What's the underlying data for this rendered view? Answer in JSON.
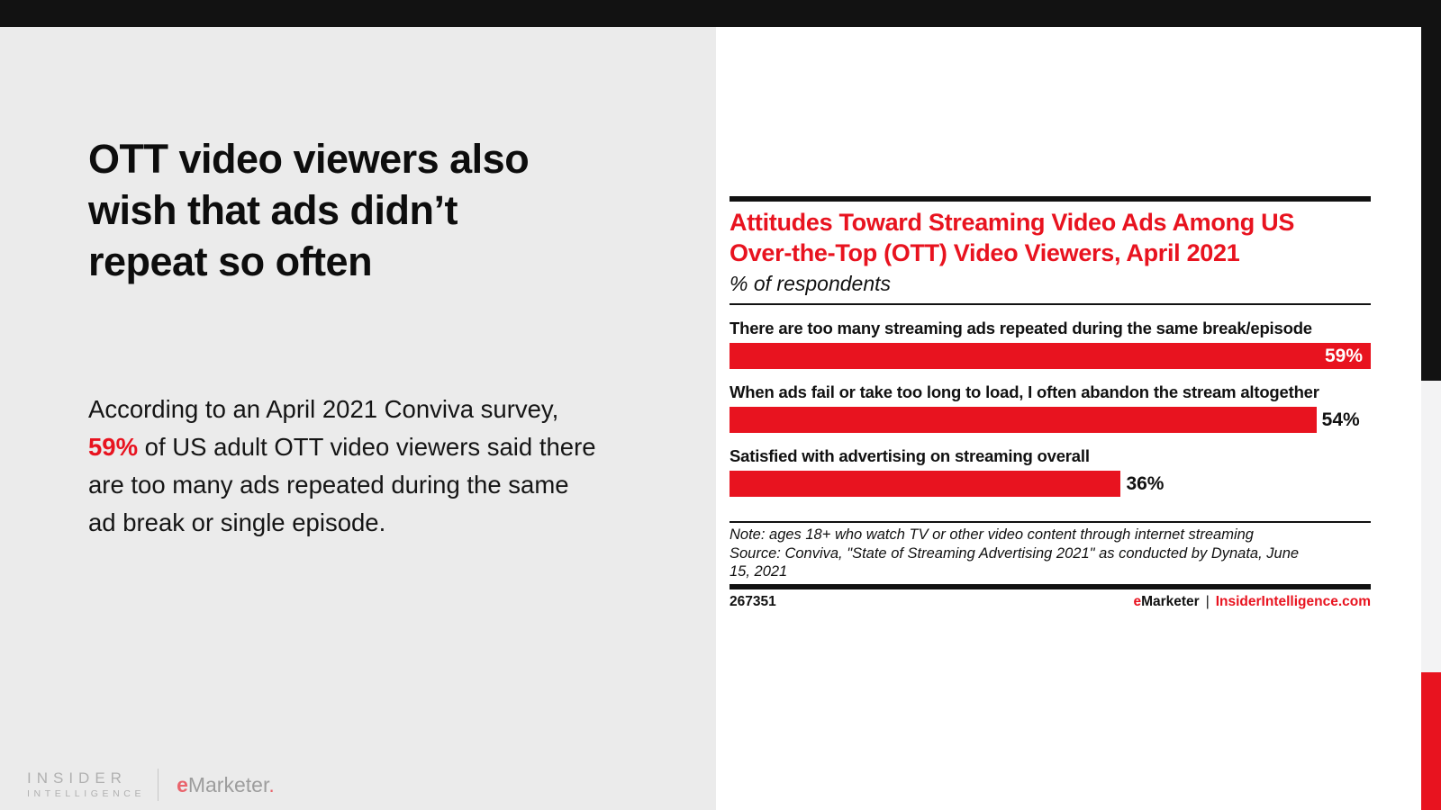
{
  "colors": {
    "accent_red": "#e8131f",
    "top_bar_black": "#121212",
    "left_panel_bg": "#ebebeb",
    "card_bg": "#ffffff",
    "edge_gray": "#f3f3f4"
  },
  "left_panel": {
    "headline_lines": [
      "OTT video viewers also",
      "wish that ads didn’t",
      "repeat so often"
    ],
    "paragraph": {
      "line1": "According to an April 2021 Conviva survey,",
      "line2_highlight": "59%",
      "line2_rest": " of US adult OTT video viewers said there",
      "line3": "are too many ads repeated during the same",
      "line4": "ad break or single episode."
    },
    "logo": {
      "insider": "INSIDER",
      "intelligence": "INTELLIGENCE",
      "emarketer_e": "e",
      "emarketer_rest": "Marketer",
      "emarketer_dot": "."
    }
  },
  "chart_data": {
    "type": "bar",
    "orientation": "horizontal",
    "title": "Attitudes Toward Streaming Video Ads Among US Over-the-Top (OTT) Video Viewers, April 2021",
    "title_lines": [
      "Attitudes Toward Streaming Video Ads Among US",
      "Over-the-Top (OTT) Video Viewers, April 2021"
    ],
    "subtitle": "% of respondents",
    "categories": [
      "There are too many streaming ads repeated during the same break/episode",
      "When ads fail or take too long to load, I often abandon the stream altogether",
      "Satisfied with advertising on streaming overall"
    ],
    "values": [
      59,
      54,
      36
    ],
    "value_labels": [
      "59%",
      "54%",
      "36%"
    ],
    "xlim": [
      0,
      59
    ],
    "bars_scaled_to_max": true,
    "bar_color": "#e8131f",
    "grid": false,
    "legend": "none",
    "note": "Note: ages 18+ who watch TV or other video content through internet streaming",
    "source": "Source: Conviva, \"State of Streaming Advertising 2021\" as conducted by Dynata, June 15, 2021",
    "chart_id": "267351",
    "footer": {
      "brand_e": "e",
      "brand_rest": "Marketer",
      "separator": "|",
      "site": "InsiderIntelligence.com"
    }
  }
}
